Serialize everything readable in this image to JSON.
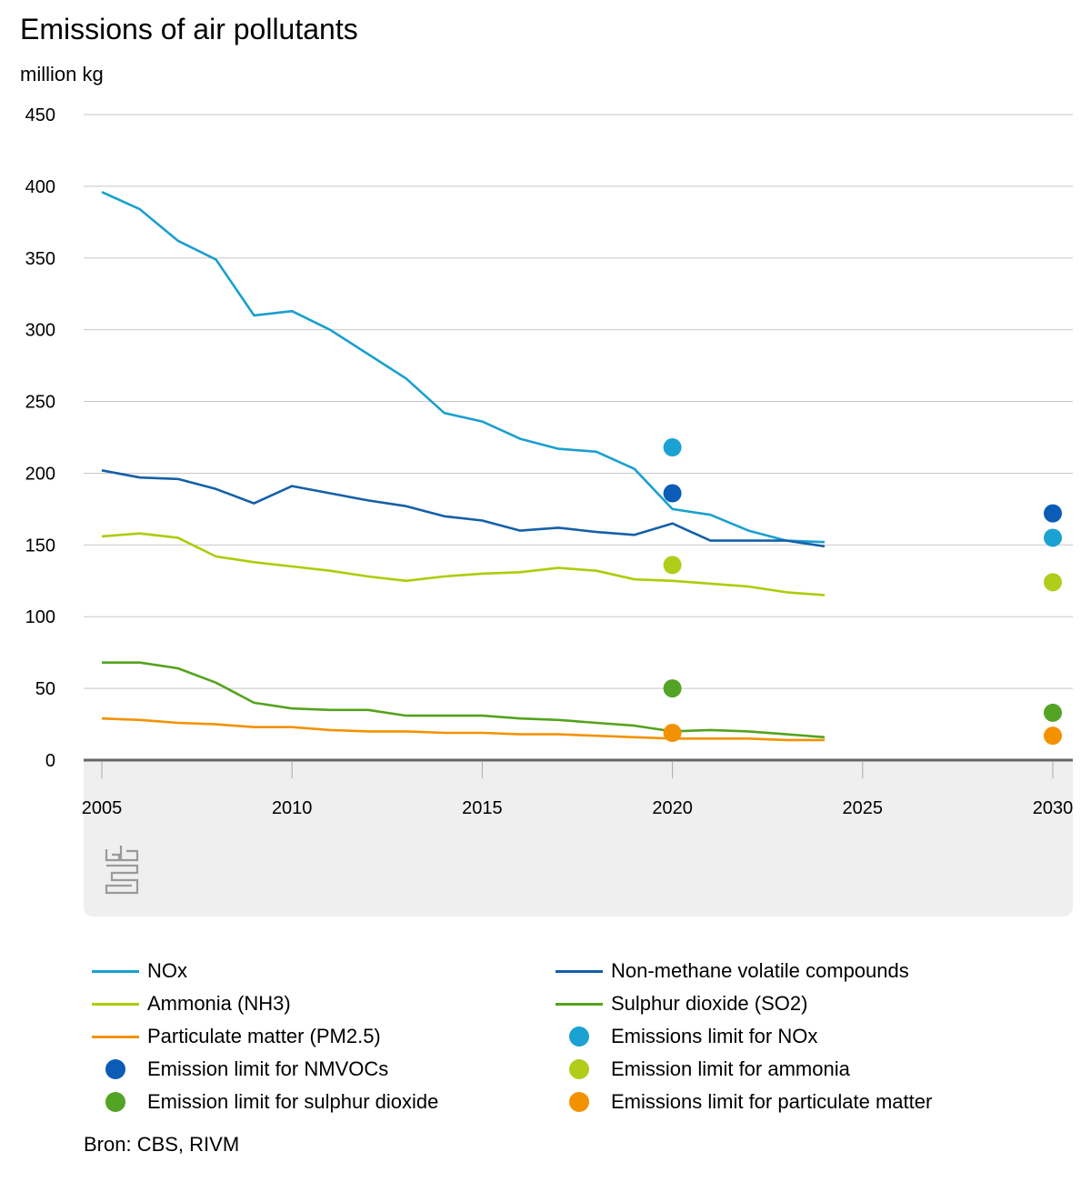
{
  "chart_data": {
    "type": "line",
    "title": "Emissions of air pollutants",
    "ylabel": "million kg",
    "xlabel": "",
    "xlim": [
      2005,
      2030
    ],
    "ylim": [
      0,
      450
    ],
    "y_ticks": [
      0,
      50,
      100,
      150,
      200,
      250,
      300,
      350,
      400,
      450
    ],
    "x_ticks": [
      2005,
      2010,
      2015,
      2020,
      2025,
      2030
    ],
    "grid": true,
    "source": "Bron: CBS, RIVM",
    "series": [
      {
        "name": "NOx",
        "kind": "line",
        "color": "#1a9fd0",
        "x": [
          2005,
          2006,
          2007,
          2008,
          2009,
          2010,
          2011,
          2012,
          2013,
          2014,
          2015,
          2016,
          2017,
          2018,
          2019,
          2020,
          2021,
          2022,
          2023,
          2024
        ],
        "values": [
          396,
          384,
          362,
          349,
          310,
          313,
          300,
          283,
          266,
          242,
          236,
          224,
          217,
          215,
          203,
          175,
          171,
          160,
          153,
          152
        ]
      },
      {
        "name": "Non-methane volatile compounds",
        "kind": "line",
        "color": "#1560a8",
        "x": [
          2005,
          2006,
          2007,
          2008,
          2009,
          2010,
          2011,
          2012,
          2013,
          2014,
          2015,
          2016,
          2017,
          2018,
          2019,
          2020,
          2021,
          2022,
          2023,
          2024
        ],
        "values": [
          202,
          197,
          196,
          189,
          179,
          191,
          186,
          181,
          177,
          170,
          167,
          160,
          162,
          159,
          157,
          165,
          153,
          153,
          153,
          149
        ]
      },
      {
        "name": "Ammonia (NH3)",
        "kind": "line",
        "color": "#afcb06",
        "x": [
          2005,
          2006,
          2007,
          2008,
          2009,
          2010,
          2011,
          2012,
          2013,
          2014,
          2015,
          2016,
          2017,
          2018,
          2019,
          2020,
          2021,
          2022,
          2023,
          2024
        ],
        "values": [
          156,
          158,
          155,
          142,
          138,
          135,
          132,
          128,
          125,
          128,
          130,
          131,
          134,
          132,
          126,
          125,
          123,
          121,
          117,
          115
        ]
      },
      {
        "name": "Sulphur dioxide (SO2)",
        "kind": "line",
        "color": "#53a31d",
        "x": [
          2005,
          2006,
          2007,
          2008,
          2009,
          2010,
          2011,
          2012,
          2013,
          2014,
          2015,
          2016,
          2017,
          2018,
          2019,
          2020,
          2021,
          2022,
          2023,
          2024
        ],
        "values": [
          68,
          68,
          64,
          54,
          40,
          36,
          35,
          35,
          31,
          31,
          31,
          29,
          28,
          26,
          24,
          20,
          21,
          20,
          18,
          16
        ]
      },
      {
        "name": "Particulate matter (PM2.5)",
        "kind": "line",
        "color": "#f39200",
        "x": [
          2005,
          2006,
          2007,
          2008,
          2009,
          2010,
          2011,
          2012,
          2013,
          2014,
          2015,
          2016,
          2017,
          2018,
          2019,
          2020,
          2021,
          2022,
          2023,
          2024
        ],
        "values": [
          29,
          28,
          26,
          25,
          23,
          23,
          21,
          20,
          20,
          19,
          19,
          18,
          18,
          17,
          16,
          15,
          15,
          15,
          14,
          14
        ]
      },
      {
        "name": "Emissions limit for NOx",
        "kind": "dot",
        "color": "#1ba2d2",
        "x": [
          2020,
          2030
        ],
        "values": [
          218,
          155
        ]
      },
      {
        "name": "Emission limit for NMVOCs",
        "kind": "dot",
        "color": "#0b5cb6",
        "x": [
          2020,
          2030
        ],
        "values": [
          186,
          172
        ]
      },
      {
        "name": "Emission limit for ammonia",
        "kind": "dot",
        "color": "#b2cc1a",
        "x": [
          2020,
          2030
        ],
        "values": [
          136,
          124
        ]
      },
      {
        "name": "Emission limit for sulphur dioxide",
        "kind": "dot",
        "color": "#53a325",
        "x": [
          2020,
          2030
        ],
        "values": [
          50,
          33
        ]
      },
      {
        "name": "Emissions limit for particulate matter",
        "kind": "dot",
        "color": "#f39200",
        "x": [
          2020,
          2030
        ],
        "values": [
          19,
          17
        ]
      }
    ],
    "legend": [
      {
        "label": "NOx",
        "marker": "line",
        "color": "#1a9fd0"
      },
      {
        "label": "Non-methane volatile compounds",
        "marker": "line",
        "color": "#1560a8"
      },
      {
        "label": "Ammonia (NH3)",
        "marker": "line",
        "color": "#afcb06"
      },
      {
        "label": "Sulphur dioxide (SO2)",
        "marker": "line",
        "color": "#53a31d"
      },
      {
        "label": "Particulate matter (PM2.5)",
        "marker": "line",
        "color": "#f39200"
      },
      {
        "label": "Emissions limit for NOx",
        "marker": "dot",
        "color": "#1ba2d2"
      },
      {
        "label": "Emission limit for NMVOCs",
        "marker": "dot",
        "color": "#0b5cb6"
      },
      {
        "label": "Emission limit for ammonia",
        "marker": "dot",
        "color": "#b2cc1a"
      },
      {
        "label": "Emission limit for sulphur dioxide",
        "marker": "dot",
        "color": "#53a325"
      },
      {
        "label": "Emissions limit for particulate matter",
        "marker": "dot",
        "color": "#f39200"
      }
    ]
  }
}
